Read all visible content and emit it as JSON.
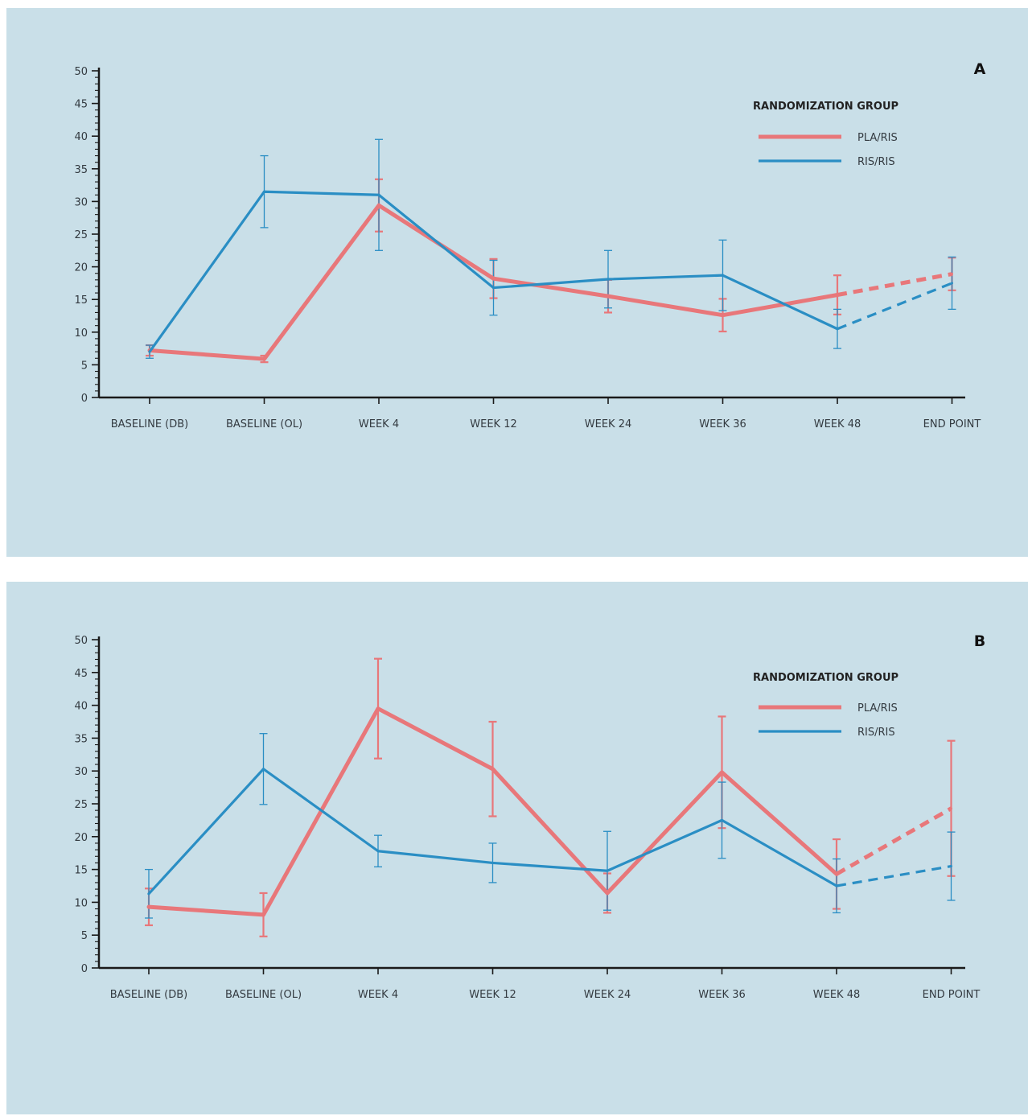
{
  "colors": {
    "background": "#c9dfe8",
    "pla_ris": "#e8777a",
    "ris_ris": "#2a8ec4",
    "axis": "#1a1a1a"
  },
  "chart_data": [
    {
      "type": "line",
      "panel_label": "A",
      "categories": [
        "BASELINE (DB)",
        "BASELINE (OL)",
        "WEEK 4",
        "WEEK 12",
        "WEEK 24",
        "WEEK 36",
        "WEEK 48",
        "END POINT"
      ],
      "ylim": [
        0,
        50
      ],
      "yticks": [
        "0",
        "5",
        "10",
        "15",
        "20",
        "25",
        "30",
        "35",
        "40",
        "45",
        "50"
      ],
      "legend_title": "RANDOMIZATION GROUP",
      "legend_position": "top-right",
      "series": [
        {
          "name": "PLA/RIS",
          "values": [
            7.2,
            5.9,
            29.4,
            18.2,
            15.5,
            12.6,
            15.7,
            18.9
          ],
          "errors": [
            0.8,
            0.5,
            4.0,
            3.0,
            2.5,
            2.5,
            3.0,
            2.5
          ],
          "dashed_last_segment": true
        },
        {
          "name": "RIS/RIS",
          "values": [
            7.0,
            31.5,
            31.0,
            16.8,
            18.1,
            18.7,
            10.5,
            17.5
          ],
          "errors": [
            1.0,
            5.5,
            8.5,
            4.2,
            4.4,
            5.4,
            3.0,
            4.0
          ],
          "dashed_last_segment": true
        }
      ]
    },
    {
      "type": "line",
      "panel_label": "B",
      "categories": [
        "BASELINE (DB)",
        "BASELINE (OL)",
        "WEEK 4",
        "WEEK 12",
        "WEEK 24",
        "WEEK 36",
        "WEEK 48",
        "END POINT"
      ],
      "ylim": [
        0,
        50
      ],
      "yticks": [
        "0",
        "5",
        "10",
        "15",
        "20",
        "25",
        "30",
        "35",
        "40",
        "45",
        "50"
      ],
      "legend_title": "RANDOMIZATION GROUP",
      "legend_position": "top-right",
      "series": [
        {
          "name": "PLA/RIS",
          "values": [
            9.3,
            8.1,
            39.5,
            30.3,
            11.4,
            29.8,
            14.3,
            24.3
          ],
          "errors": [
            2.8,
            3.3,
            7.6,
            7.2,
            3.0,
            8.5,
            5.3,
            10.3
          ],
          "dashed_last_segment": true
        },
        {
          "name": "RIS/RIS",
          "values": [
            11.3,
            30.3,
            17.8,
            16.0,
            14.8,
            22.5,
            12.5,
            15.5
          ],
          "errors": [
            3.7,
            5.4,
            2.4,
            3.0,
            6.0,
            5.8,
            4.1,
            5.2
          ],
          "dashed_last_segment": true
        }
      ]
    }
  ]
}
